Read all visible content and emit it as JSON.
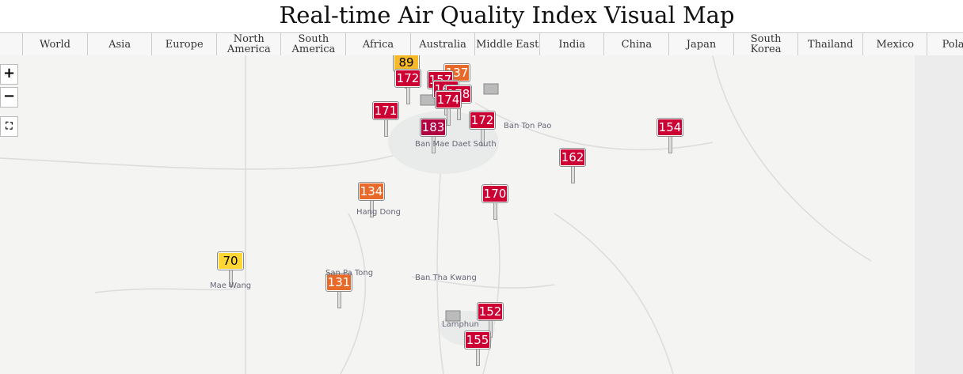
{
  "header": {
    "title": "Real-time Air Quality Index Visual Map"
  },
  "tabs": [
    "World",
    "Asia",
    "Europe",
    "North America",
    "South America",
    "Africa",
    "Australia",
    "Middle East",
    "India",
    "China",
    "Japan",
    "South Korea",
    "Thailand",
    "Mexico",
    "Poland"
  ],
  "markers": [
    89,
    172,
    137,
    157,
    165,
    178,
    174,
    171,
    172,
    183,
    154,
    162,
    134,
    170,
    70,
    131,
    152,
    155
  ],
  "places": [
    "Ban Ton Pao",
    "Ban Mae Daet South",
    "Hang Dong",
    "San Pa Tong",
    "Mae Wang",
    "Ban Tha Kwang",
    "Lamphun"
  ]
}
